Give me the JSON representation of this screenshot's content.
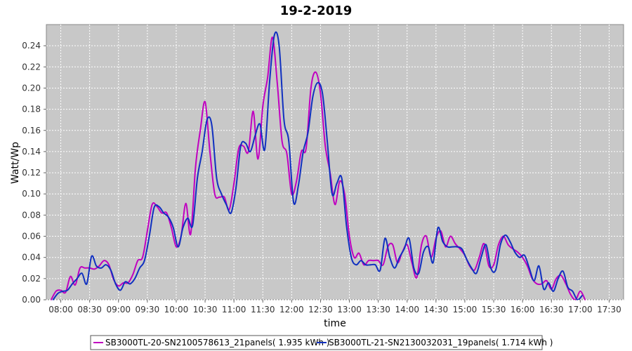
{
  "chart_data": {
    "type": "line",
    "title": "19-2-2019",
    "xlabel": "time",
    "ylabel": "Watt/Wp",
    "xlim": [
      "07:45",
      "17:45"
    ],
    "ylim": [
      0,
      0.26
    ],
    "x_ticks": [
      "08:00",
      "08:30",
      "09:00",
      "09:30",
      "10:00",
      "10:30",
      "11:00",
      "11:30",
      "12:00",
      "12:30",
      "13:00",
      "13:30",
      "14:00",
      "14:30",
      "15:00",
      "15:30",
      "16:00",
      "16:30",
      "17:00",
      "17:30"
    ],
    "y_ticks": [
      "0.00",
      "0.02",
      "0.04",
      "0.06",
      "0.08",
      "0.10",
      "0.12",
      "0.14",
      "0.16",
      "0.18",
      "0.20",
      "0.22",
      "0.24"
    ],
    "grid": true,
    "legend_position": "bottom",
    "series": [
      {
        "name": "SB3000TL-20-SN2100578613_21panels( 1.935 kWh )",
        "color": "#c000c0",
        "points": [
          [
            "07:50",
            0.0
          ],
          [
            "07:55",
            0.008
          ],
          [
            "08:00",
            0.009
          ],
          [
            "08:05",
            0.007
          ],
          [
            "08:10",
            0.022
          ],
          [
            "08:15",
            0.014
          ],
          [
            "08:20",
            0.03
          ],
          [
            "08:25",
            0.03
          ],
          [
            "08:30",
            0.03
          ],
          [
            "08:35",
            0.029
          ],
          [
            "08:40",
            0.032
          ],
          [
            "08:45",
            0.037
          ],
          [
            "08:50",
            0.033
          ],
          [
            "08:55",
            0.019
          ],
          [
            "09:00",
            0.013
          ],
          [
            "09:05",
            0.016
          ],
          [
            "09:10",
            0.016
          ],
          [
            "09:15",
            0.024
          ],
          [
            "09:20",
            0.037
          ],
          [
            "09:25",
            0.04
          ],
          [
            "09:30",
            0.065
          ],
          [
            "09:35",
            0.09
          ],
          [
            "09:40",
            0.088
          ],
          [
            "09:45",
            0.082
          ],
          [
            "09:50",
            0.082
          ],
          [
            "09:55",
            0.068
          ],
          [
            "10:00",
            0.05
          ],
          [
            "10:05",
            0.06
          ],
          [
            "10:10",
            0.091
          ],
          [
            "10:15",
            0.062
          ],
          [
            "10:20",
            0.125
          ],
          [
            "10:25",
            0.16
          ],
          [
            "10:30",
            0.187
          ],
          [
            "10:35",
            0.14
          ],
          [
            "10:40",
            0.1
          ],
          [
            "10:45",
            0.097
          ],
          [
            "10:50",
            0.097
          ],
          [
            "10:55",
            0.085
          ],
          [
            "11:00",
            0.11
          ],
          [
            "11:05",
            0.143
          ],
          [
            "11:10",
            0.145
          ],
          [
            "11:15",
            0.14
          ],
          [
            "11:20",
            0.178
          ],
          [
            "11:25",
            0.133
          ],
          [
            "11:30",
            0.183
          ],
          [
            "11:35",
            0.21
          ],
          [
            "11:40",
            0.248
          ],
          [
            "11:45",
            0.205
          ],
          [
            "11:50",
            0.15
          ],
          [
            "11:55",
            0.138
          ],
          [
            "12:00",
            0.1
          ],
          [
            "12:05",
            0.112
          ],
          [
            "12:10",
            0.14
          ],
          [
            "12:15",
            0.143
          ],
          [
            "12:20",
            0.2
          ],
          [
            "12:25",
            0.215
          ],
          [
            "12:30",
            0.195
          ],
          [
            "12:35",
            0.145
          ],
          [
            "12:40",
            0.12
          ],
          [
            "12:45",
            0.09
          ],
          [
            "12:50",
            0.112
          ],
          [
            "12:55",
            0.1
          ],
          [
            "13:00",
            0.06
          ],
          [
            "13:05",
            0.04
          ],
          [
            "13:10",
            0.044
          ],
          [
            "13:15",
            0.033
          ],
          [
            "13:20",
            0.037
          ],
          [
            "13:25",
            0.037
          ],
          [
            "13:30",
            0.037
          ],
          [
            "13:35",
            0.033
          ],
          [
            "13:40",
            0.05
          ],
          [
            "13:45",
            0.052
          ],
          [
            "13:50",
            0.035
          ],
          [
            "13:55",
            0.045
          ],
          [
            "14:00",
            0.052
          ],
          [
            "14:05",
            0.035
          ],
          [
            "14:10",
            0.021
          ],
          [
            "14:15",
            0.052
          ],
          [
            "14:20",
            0.06
          ],
          [
            "14:25",
            0.04
          ],
          [
            "14:30",
            0.058
          ],
          [
            "14:35",
            0.065
          ],
          [
            "14:40",
            0.05
          ],
          [
            "14:45",
            0.06
          ],
          [
            "14:50",
            0.053
          ],
          [
            "14:55",
            0.048
          ],
          [
            "15:00",
            0.042
          ],
          [
            "15:05",
            0.032
          ],
          [
            "15:10",
            0.028
          ],
          [
            "15:15",
            0.04
          ],
          [
            "15:20",
            0.053
          ],
          [
            "15:25",
            0.032
          ],
          [
            "15:30",
            0.033
          ],
          [
            "15:35",
            0.052
          ],
          [
            "15:40",
            0.06
          ],
          [
            "15:45",
            0.052
          ],
          [
            "15:50",
            0.048
          ],
          [
            "15:55",
            0.045
          ],
          [
            "16:00",
            0.04
          ],
          [
            "16:05",
            0.032
          ],
          [
            "16:10",
            0.02
          ],
          [
            "16:15",
            0.015
          ],
          [
            "16:20",
            0.015
          ],
          [
            "16:25",
            0.018
          ],
          [
            "16:30",
            0.01
          ],
          [
            "16:35",
            0.02
          ],
          [
            "16:40",
            0.023
          ],
          [
            "16:45",
            0.015
          ],
          [
            "16:50",
            0.005
          ],
          [
            "16:55",
            0.0
          ],
          [
            "17:00",
            0.008
          ],
          [
            "17:05",
            0.0
          ]
        ]
      },
      {
        "name": "SB3000TL-21-SN2130032031_19panels( 1.714 kWh )",
        "color": "#1030c0",
        "points": [
          [
            "07:52",
            0.0
          ],
          [
            "07:57",
            0.006
          ],
          [
            "08:02",
            0.008
          ],
          [
            "08:07",
            0.009
          ],
          [
            "08:12",
            0.015
          ],
          [
            "08:17",
            0.02
          ],
          [
            "08:22",
            0.025
          ],
          [
            "08:27",
            0.015
          ],
          [
            "08:32",
            0.041
          ],
          [
            "08:37",
            0.032
          ],
          [
            "08:42",
            0.03
          ],
          [
            "08:47",
            0.033
          ],
          [
            "08:52",
            0.028
          ],
          [
            "08:57",
            0.015
          ],
          [
            "09:02",
            0.009
          ],
          [
            "09:07",
            0.017
          ],
          [
            "09:12",
            0.015
          ],
          [
            "09:17",
            0.02
          ],
          [
            "09:22",
            0.03
          ],
          [
            "09:27",
            0.037
          ],
          [
            "09:32",
            0.06
          ],
          [
            "09:37",
            0.087
          ],
          [
            "09:42",
            0.088
          ],
          [
            "09:47",
            0.082
          ],
          [
            "09:52",
            0.078
          ],
          [
            "09:57",
            0.068
          ],
          [
            "10:02",
            0.05
          ],
          [
            "10:07",
            0.068
          ],
          [
            "10:12",
            0.077
          ],
          [
            "10:17",
            0.07
          ],
          [
            "10:22",
            0.115
          ],
          [
            "10:27",
            0.14
          ],
          [
            "10:32",
            0.17
          ],
          [
            "10:37",
            0.165
          ],
          [
            "10:42",
            0.115
          ],
          [
            "10:47",
            0.1
          ],
          [
            "10:52",
            0.09
          ],
          [
            "10:57",
            0.082
          ],
          [
            "11:02",
            0.105
          ],
          [
            "11:07",
            0.145
          ],
          [
            "11:12",
            0.148
          ],
          [
            "11:17",
            0.14
          ],
          [
            "11:22",
            0.155
          ],
          [
            "11:27",
            0.166
          ],
          [
            "11:32",
            0.142
          ],
          [
            "11:37",
            0.205
          ],
          [
            "11:42",
            0.25
          ],
          [
            "11:47",
            0.24
          ],
          [
            "11:52",
            0.17
          ],
          [
            "11:57",
            0.15
          ],
          [
            "12:02",
            0.092
          ],
          [
            "12:07",
            0.108
          ],
          [
            "12:12",
            0.14
          ],
          [
            "12:17",
            0.158
          ],
          [
            "12:22",
            0.192
          ],
          [
            "12:27",
            0.205
          ],
          [
            "12:32",
            0.195
          ],
          [
            "12:37",
            0.15
          ],
          [
            "12:42",
            0.1
          ],
          [
            "12:47",
            0.11
          ],
          [
            "12:52",
            0.115
          ],
          [
            "12:57",
            0.07
          ],
          [
            "13:02",
            0.04
          ],
          [
            "13:07",
            0.033
          ],
          [
            "13:12",
            0.037
          ],
          [
            "13:17",
            0.033
          ],
          [
            "13:22",
            0.033
          ],
          [
            "13:27",
            0.033
          ],
          [
            "13:32",
            0.028
          ],
          [
            "13:37",
            0.058
          ],
          [
            "13:42",
            0.04
          ],
          [
            "13:47",
            0.03
          ],
          [
            "13:52",
            0.04
          ],
          [
            "13:57",
            0.048
          ],
          [
            "14:02",
            0.058
          ],
          [
            "14:07",
            0.03
          ],
          [
            "14:12",
            0.025
          ],
          [
            "14:17",
            0.045
          ],
          [
            "14:22",
            0.05
          ],
          [
            "14:27",
            0.035
          ],
          [
            "14:32",
            0.068
          ],
          [
            "14:37",
            0.055
          ],
          [
            "14:42",
            0.05
          ],
          [
            "14:47",
            0.05
          ],
          [
            "14:52",
            0.05
          ],
          [
            "14:57",
            0.048
          ],
          [
            "15:02",
            0.038
          ],
          [
            "15:07",
            0.03
          ],
          [
            "15:12",
            0.025
          ],
          [
            "15:17",
            0.04
          ],
          [
            "15:22",
            0.052
          ],
          [
            "15:27",
            0.03
          ],
          [
            "15:32",
            0.028
          ],
          [
            "15:37",
            0.052
          ],
          [
            "15:42",
            0.061
          ],
          [
            "15:47",
            0.055
          ],
          [
            "15:52",
            0.045
          ],
          [
            "15:57",
            0.04
          ],
          [
            "16:02",
            0.042
          ],
          [
            "16:07",
            0.03
          ],
          [
            "16:12",
            0.018
          ],
          [
            "16:17",
            0.032
          ],
          [
            "16:22",
            0.01
          ],
          [
            "16:27",
            0.016
          ],
          [
            "16:32",
            0.008
          ],
          [
            "16:37",
            0.02
          ],
          [
            "16:42",
            0.027
          ],
          [
            "16:47",
            0.012
          ],
          [
            "16:52",
            0.008
          ],
          [
            "16:57",
            0.0
          ],
          [
            "17:02",
            0.004
          ]
        ]
      }
    ]
  }
}
